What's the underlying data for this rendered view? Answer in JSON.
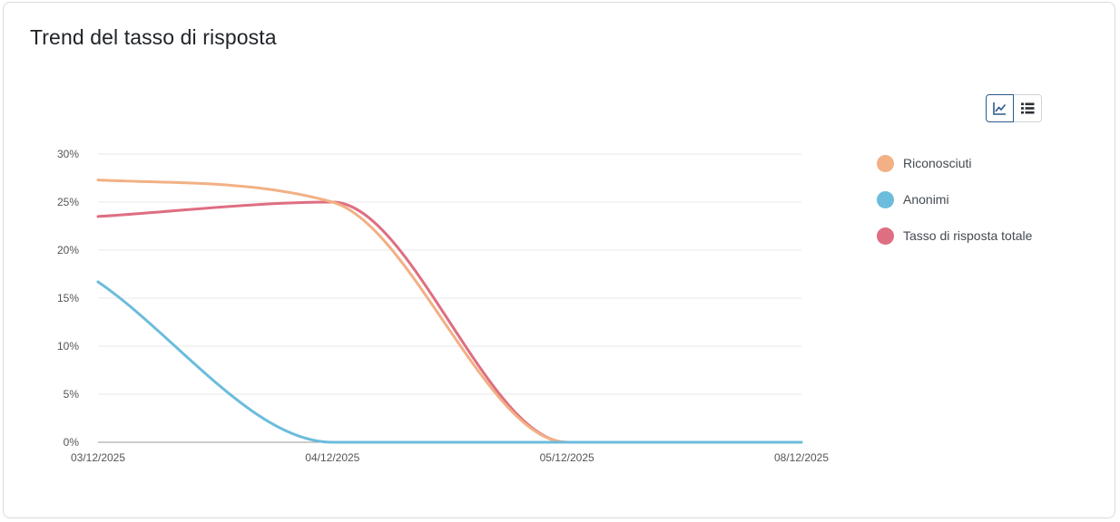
{
  "card": {
    "title": "Trend del tasso di risposta"
  },
  "toolbar": {
    "chart_view_icon": "line-chart-icon",
    "table_view_icon": "list-icon"
  },
  "colors": {
    "Riconosciuti": "#f2b084",
    "Anonimi": "#6cbcdc",
    "Tasso di risposta totale": "#de6e82",
    "active_border": "#2c5a8c",
    "grid": "#e9e9e9",
    "axis": "#9a9a9a"
  },
  "chart_data": {
    "type": "line",
    "title": "Trend del tasso di risposta",
    "xlabel": "",
    "ylabel": "",
    "x": [
      "03/12/2025",
      "04/12/2025",
      "05/12/2025",
      "08/12/2025"
    ],
    "y_ticks": [
      "0%",
      "5%",
      "10%",
      "15%",
      "20%",
      "25%",
      "30%"
    ],
    "ylim": [
      0,
      30
    ],
    "grid": true,
    "legend_position": "right",
    "series": [
      {
        "name": "Riconosciuti",
        "values": [
          27.3,
          25.0,
          0,
          0
        ]
      },
      {
        "name": "Anonimi",
        "values": [
          16.7,
          0,
          0,
          0
        ]
      },
      {
        "name": "Tasso di risposta totale",
        "values": [
          23.5,
          25.0,
          0,
          0
        ]
      }
    ]
  }
}
